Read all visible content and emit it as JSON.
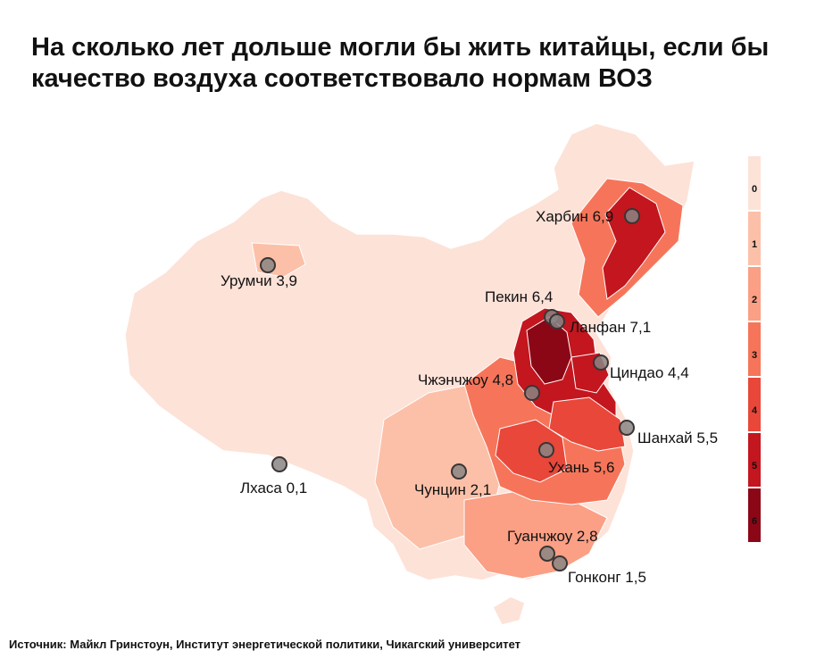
{
  "title": "На сколько лет дольше могли бы жить китайцы, если бы качество воздуха соответствовало нормам ВОЗ",
  "source": "Источник: Майкл Гринстоун, Институт энергетической политики, Чикагский университет",
  "legend": {
    "labels": [
      "0",
      "1",
      "2",
      "3",
      "4",
      "5",
      "6"
    ],
    "colors": [
      "#fde2d8",
      "#fcc0a8",
      "#fb9f85",
      "#f6755a",
      "#e8473a",
      "#c3161f",
      "#8c0716"
    ]
  },
  "cities": [
    {
      "name": "Харбин",
      "value": "6,9",
      "label": "Харбин 6,9"
    },
    {
      "name": "Урумчи",
      "value": "3,9",
      "label": "Урумчи 3,9"
    },
    {
      "name": "Пекин",
      "value": "6,4",
      "label": "Пекин 6,4"
    },
    {
      "name": "Ланфан",
      "value": "7,1",
      "label": "Ланфан 7,1"
    },
    {
      "name": "Циндао",
      "value": "4,4",
      "label": "Циндао 4,4"
    },
    {
      "name": "Чжэнчжоу",
      "value": "4,8",
      "label": "Чжэнчжоу 4,8"
    },
    {
      "name": "Шанхай",
      "value": "5,5",
      "label": "Шанхай 5,5"
    },
    {
      "name": "Ухань",
      "value": "5,6",
      "label": "Ухань 5,6"
    },
    {
      "name": "Лхаса",
      "value": "0,1",
      "label": "Лхаса 0,1"
    },
    {
      "name": "Чунцин",
      "value": "2,1",
      "label": "Чунцин 2,1"
    },
    {
      "name": "Гуанчжоу",
      "value": "2,8",
      "label": "Гуанчжоу 2,8"
    },
    {
      "name": "Гонконг",
      "value": "1,5",
      "label": "Гонконг 1,5"
    }
  ]
}
